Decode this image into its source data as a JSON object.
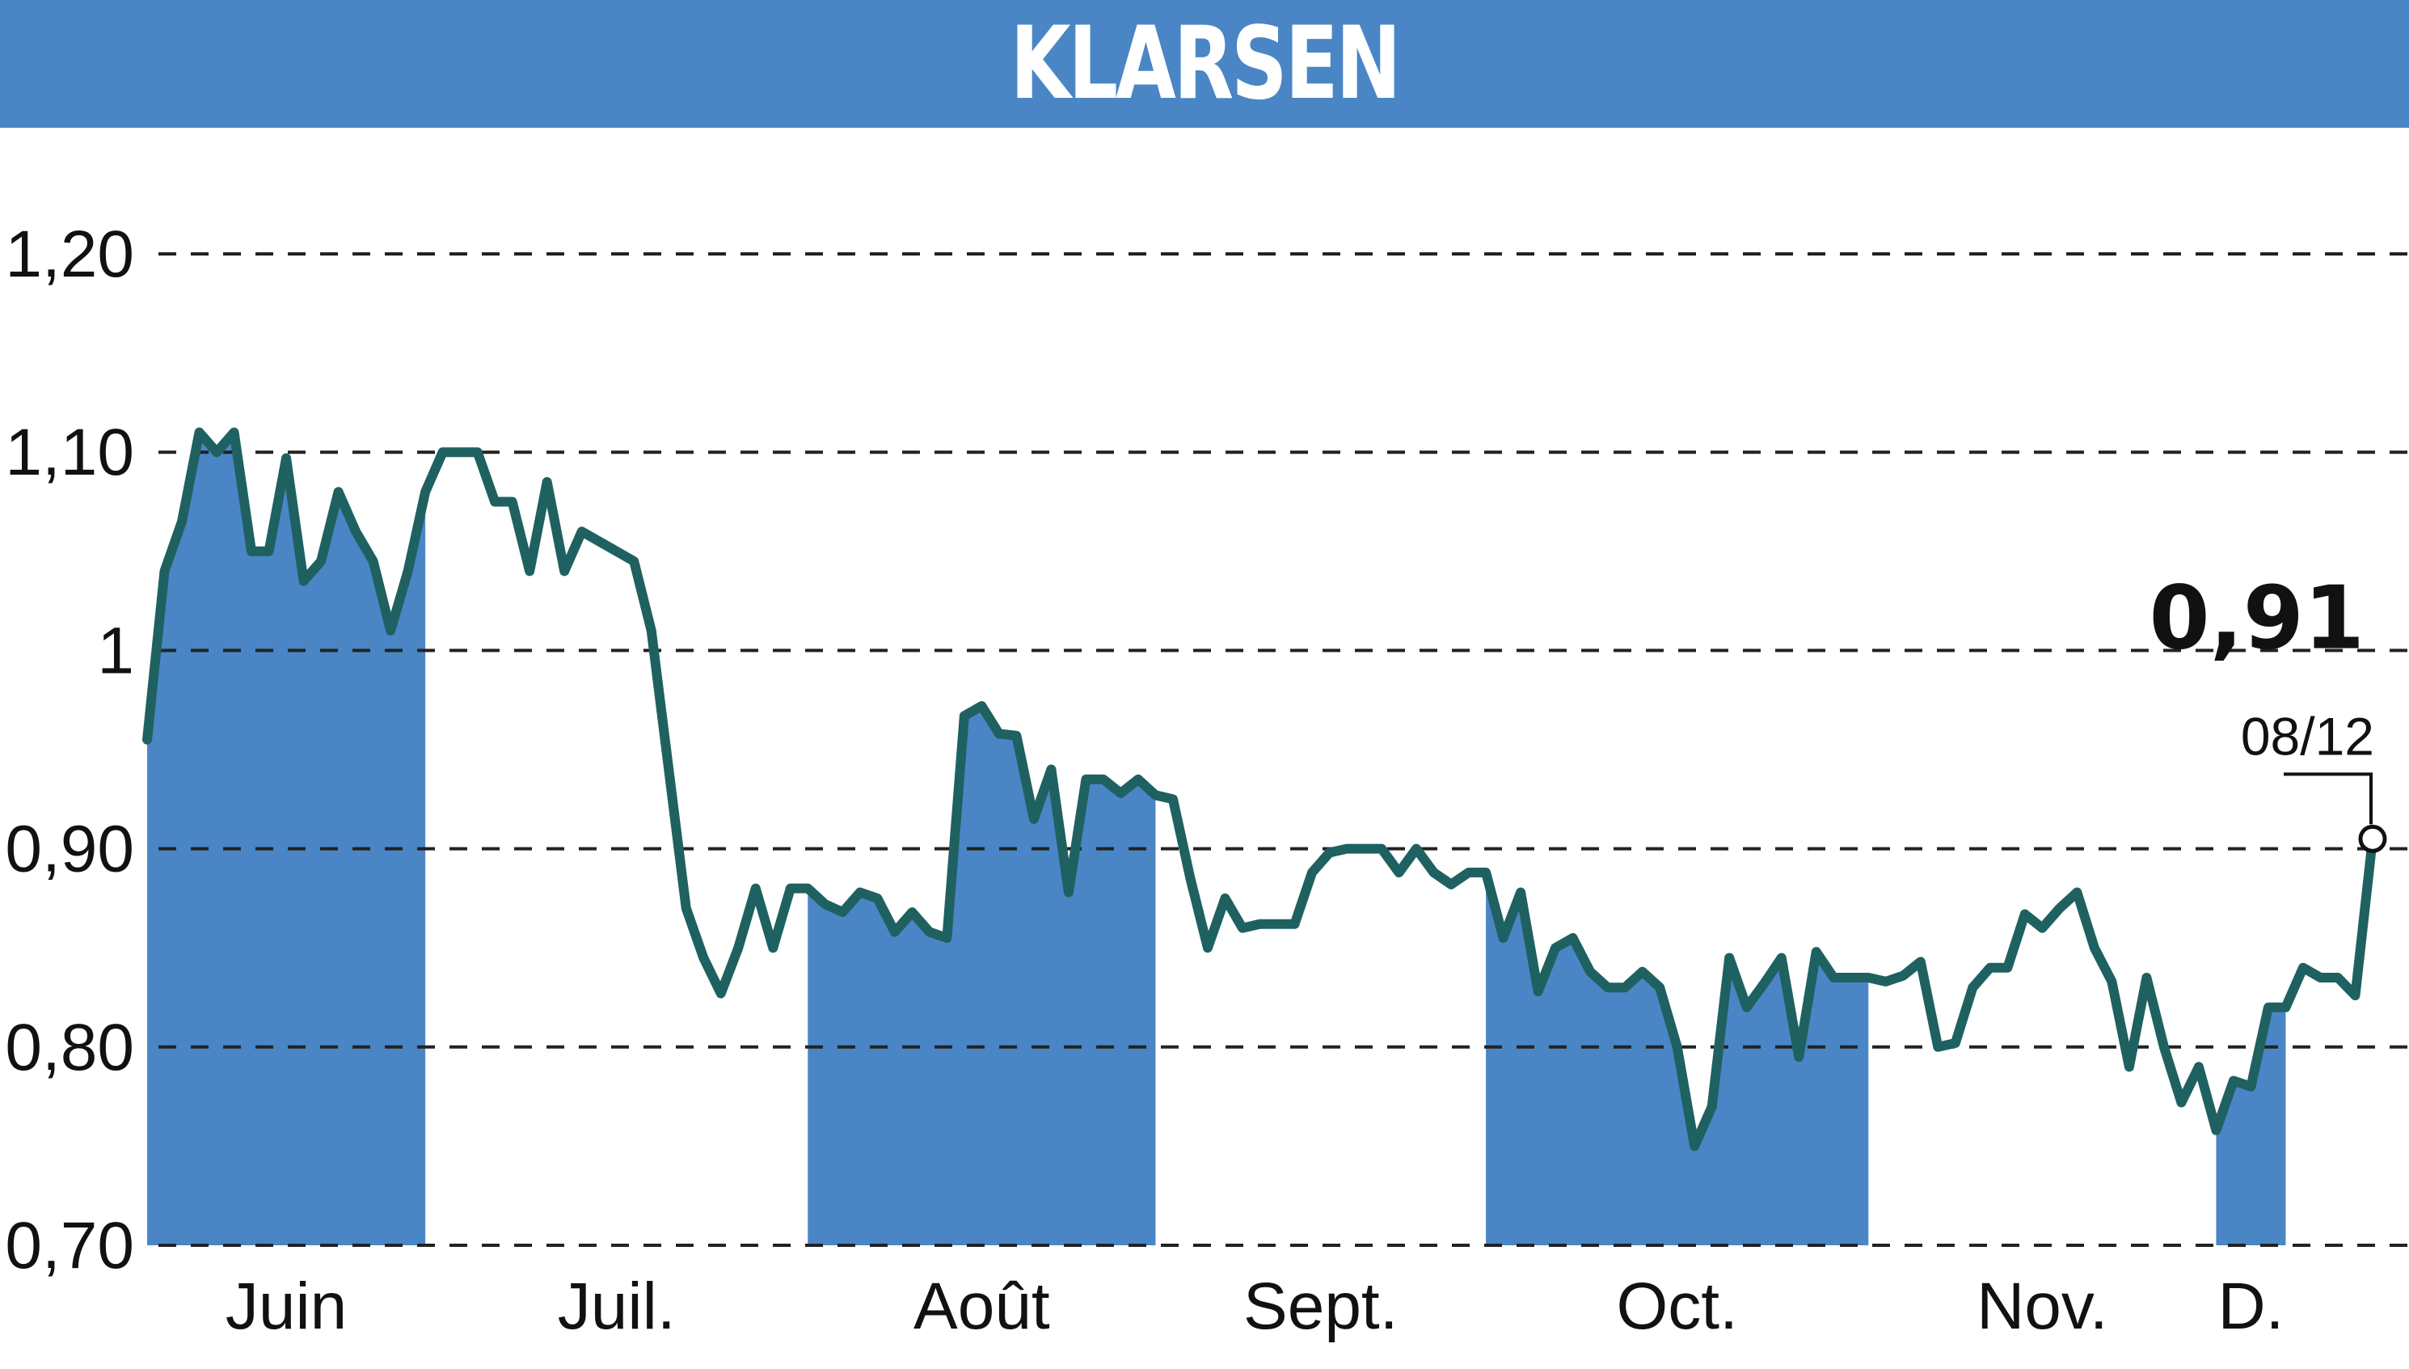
{
  "title": "KLARSEN",
  "colors": {
    "header": "#4a86c5",
    "area": "#4a86c5",
    "line": "#1f6161",
    "grid": "#222222",
    "title_text": "#ffffff"
  },
  "chart_data": {
    "type": "line",
    "title": "KLARSEN",
    "ylim": [
      0.7,
      1.2
    ],
    "yticks": [
      {
        "value": 1.2,
        "label": "1,20"
      },
      {
        "value": 1.1,
        "label": "1,10"
      },
      {
        "value": 1.0,
        "label": "1"
      },
      {
        "value": 0.9,
        "label": "0,90"
      },
      {
        "value": 0.8,
        "label": "0,80"
      },
      {
        "value": 0.7,
        "label": "0,70"
      }
    ],
    "grid": "horizontal-dashed",
    "months": [
      {
        "label": "Juin",
        "start": 0,
        "end": 16,
        "shaded": true
      },
      {
        "label": "Juil.",
        "start": 16,
        "end": 38,
        "shaded": false
      },
      {
        "label": "Août",
        "start": 38,
        "end": 58,
        "shaded": true
      },
      {
        "label": "Sept.",
        "start": 58,
        "end": 77,
        "shaded": false
      },
      {
        "label": "Oct.",
        "start": 77,
        "end": 99,
        "shaded": true
      },
      {
        "label": "Nov.",
        "start": 99,
        "end": 119,
        "shaded": false
      },
      {
        "label": "D.",
        "start": 119,
        "end": 123,
        "shaded": true
      }
    ],
    "values": [
      0.955,
      1.04,
      1.065,
      1.11,
      1.1,
      1.11,
      1.05,
      1.05,
      1.097,
      1.035,
      1.045,
      1.08,
      1.06,
      1.045,
      1.01,
      1.04,
      1.08,
      1.1,
      1.1,
      1.1,
      1.075,
      1.075,
      1.04,
      1.085,
      1.04,
      1.06,
      1.055,
      1.05,
      1.045,
      1.01,
      0.94,
      0.87,
      0.845,
      0.827,
      0.85,
      0.88,
      0.85,
      0.88,
      0.88,
      0.872,
      0.868,
      0.878,
      0.875,
      0.858,
      0.868,
      0.858,
      0.855,
      0.967,
      0.972,
      0.958,
      0.957,
      0.915,
      0.94,
      0.878,
      0.935,
      0.935,
      0.928,
      0.935,
      0.927,
      0.925,
      0.885,
      0.85,
      0.875,
      0.86,
      0.862,
      0.862,
      0.862,
      0.888,
      0.898,
      0.9,
      0.9,
      0.9,
      0.888,
      0.9,
      0.888,
      0.882,
      0.888,
      0.888,
      0.855,
      0.878,
      0.828,
      0.85,
      0.855,
      0.838,
      0.83,
      0.83,
      0.838,
      0.83,
      0.8,
      0.75,
      0.77,
      0.845,
      0.82,
      0.832,
      0.845,
      0.795,
      0.848,
      0.835,
      0.835,
      0.835,
      0.833,
      0.836,
      0.843,
      0.8,
      0.802,
      0.83,
      0.84,
      0.84,
      0.867,
      0.86,
      0.87,
      0.878,
      0.85,
      0.833,
      0.79,
      0.835,
      0.8,
      0.772,
      0.79,
      0.758,
      0.783,
      0.78,
      0.82,
      0.82,
      0.84,
      0.835,
      0.835,
      0.826,
      0.905
    ],
    "last_value": {
      "label": "0,91",
      "date": "08/12"
    }
  }
}
